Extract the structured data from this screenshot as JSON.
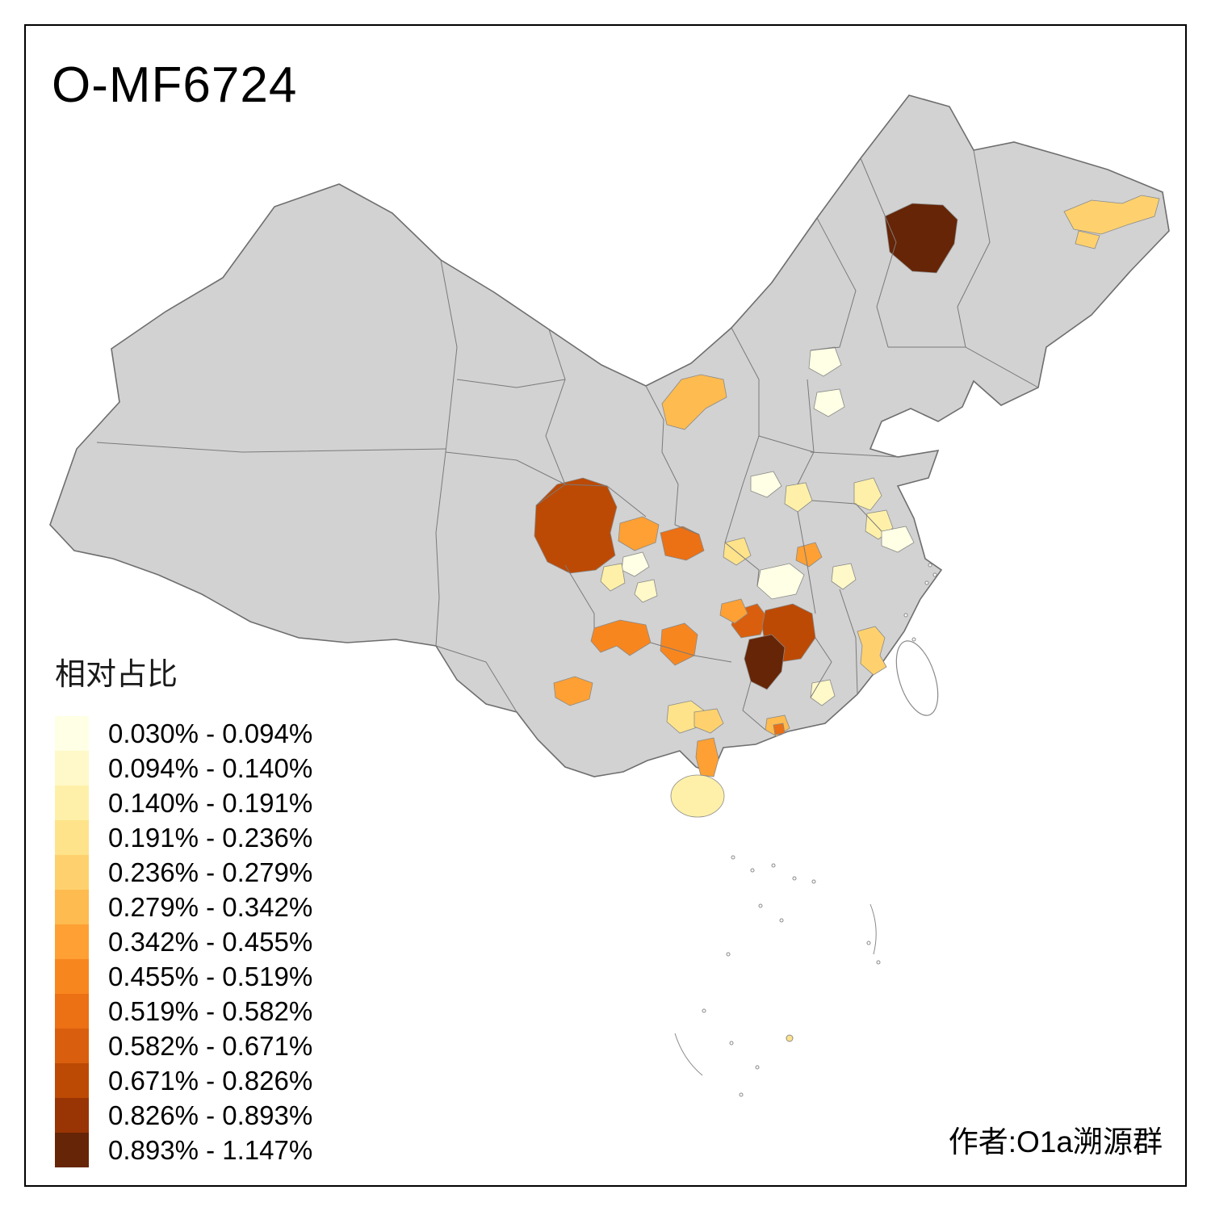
{
  "title": "O-MF6724",
  "attribution": "作者:O1a溯源群",
  "legend": {
    "title": "相对占比",
    "items": [
      {
        "label": "0.030% - 0.094%",
        "color": "#FFFFE5"
      },
      {
        "label": "0.094% - 0.140%",
        "color": "#FFF8C8"
      },
      {
        "label": "0.140% - 0.191%",
        "color": "#FEF0A8"
      },
      {
        "label": "0.191% - 0.236%",
        "color": "#FEE38A"
      },
      {
        "label": "0.236% - 0.279%",
        "color": "#FED16E"
      },
      {
        "label": "0.279% - 0.342%",
        "color": "#FEBB4F"
      },
      {
        "label": "0.342% - 0.455%",
        "color": "#FEA033"
      },
      {
        "label": "0.455% - 0.519%",
        "color": "#F8861F"
      },
      {
        "label": "0.519% - 0.582%",
        "color": "#EC7014"
      },
      {
        "label": "0.582% - 0.671%",
        "color": "#D95F0E"
      },
      {
        "label": "0.671% - 0.826%",
        "color": "#BC4A05"
      },
      {
        "label": "0.826% - 0.893%",
        "color": "#993404"
      },
      {
        "label": "0.893% - 1.147%",
        "color": "#662506"
      }
    ]
  },
  "map": {
    "type": "china-prefecture-choropleth",
    "base_fill": "#D2D2D2",
    "border_color": "#6E6E6E",
    "sea_color": "#FFFFFF",
    "unshaded_note": "gray = no data"
  }
}
